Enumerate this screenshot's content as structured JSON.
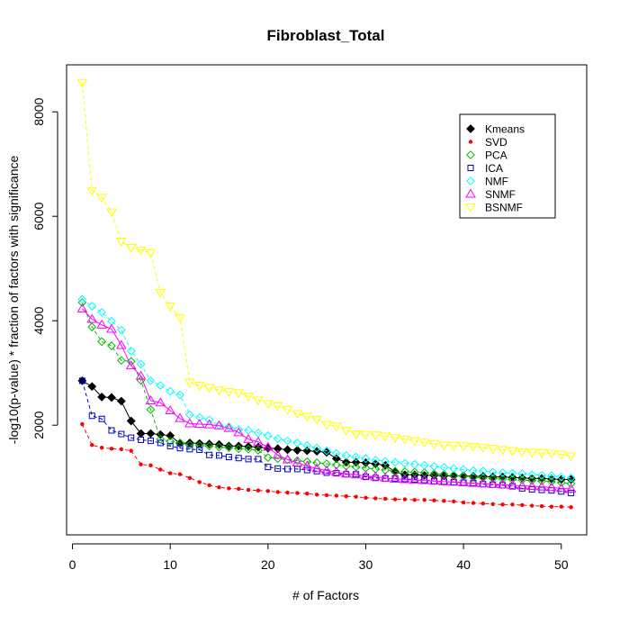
{
  "chart_data": {
    "type": "line",
    "title": "Fibroblast_Total",
    "xlabel": "# of Factors",
    "ylabel": "-log10(p-value) * fraction of factors with significance",
    "xlim": [
      -0.6,
      52.6
    ],
    "ylim": [
      -100,
      8900
    ],
    "xticks": [
      0,
      10,
      20,
      30,
      40,
      50
    ],
    "yticks": [
      2000,
      4000,
      6000,
      8000
    ],
    "grid": false,
    "legend_position": "top-right",
    "x": [
      1,
      2,
      3,
      4,
      5,
      6,
      7,
      8,
      9,
      10,
      11,
      12,
      13,
      14,
      15,
      16,
      17,
      18,
      19,
      20,
      21,
      22,
      23,
      24,
      25,
      26,
      27,
      28,
      29,
      30,
      31,
      32,
      33,
      34,
      35,
      36,
      37,
      38,
      39,
      40,
      41,
      42,
      43,
      44,
      45,
      46,
      47,
      48,
      49,
      50,
      51
    ],
    "series": [
      {
        "name": "Kmeans",
        "color": "#000000",
        "marker": "filled-diamond",
        "values": [
          2850,
          2740,
          2540,
          2530,
          2460,
          2080,
          1840,
          1840,
          1820,
          1800,
          1650,
          1660,
          1650,
          1640,
          1630,
          1600,
          1600,
          1590,
          1580,
          1560,
          1550,
          1530,
          1520,
          1510,
          1500,
          1480,
          1360,
          1290,
          1290,
          1280,
          1260,
          1230,
          1110,
          1050,
          1050,
          1040,
          1040,
          1030,
          1030,
          1030,
          1020,
          1020,
          1010,
          1010,
          1000,
          990,
          980,
          980,
          970,
          960,
          960
        ]
      },
      {
        "name": "SVD",
        "color": "#ff0000",
        "marker": "dot",
        "values": [
          2020,
          1620,
          1570,
          1550,
          1540,
          1510,
          1250,
          1230,
          1150,
          1080,
          1060,
          990,
          910,
          850,
          810,
          790,
          780,
          760,
          750,
          740,
          720,
          710,
          700,
          690,
          670,
          660,
          650,
          640,
          630,
          610,
          600,
          590,
          580,
          580,
          570,
          570,
          560,
          550,
          540,
          520,
          510,
          500,
          490,
          480,
          480,
          470,
          460,
          450,
          440,
          440,
          430
        ]
      },
      {
        "name": "PCA",
        "color": "#00bb00",
        "marker": "open-diamond",
        "values": [
          4350,
          3880,
          3600,
          3520,
          3240,
          3220,
          2860,
          2300,
          1730,
          1690,
          1660,
          1620,
          1610,
          1600,
          1580,
          1570,
          1550,
          1540,
          1520,
          1380,
          1360,
          1340,
          1320,
          1300,
          1280,
          1260,
          1240,
          1220,
          1200,
          1180,
          1160,
          1140,
          1120,
          1110,
          1100,
          1090,
          1070,
          1060,
          1040,
          1020,
          1000,
          990,
          980,
          970,
          960,
          950,
          940,
          930,
          920,
          900,
          880
        ]
      },
      {
        "name": "ICA",
        "color": "#0000cc",
        "marker": "open-square",
        "values": [
          2850,
          2180,
          2120,
          1900,
          1830,
          1760,
          1720,
          1700,
          1660,
          1600,
          1560,
          1540,
          1530,
          1430,
          1420,
          1390,
          1370,
          1350,
          1350,
          1200,
          1170,
          1160,
          1160,
          1140,
          1120,
          1090,
          1080,
          1060,
          1060,
          1010,
          990,
          980,
          980,
          970,
          960,
          950,
          930,
          920,
          910,
          900,
          890,
          870,
          860,
          850,
          830,
          790,
          770,
          760,
          750,
          730,
          700
        ]
      },
      {
        "name": "NMF",
        "color": "#00ffff",
        "marker": "open-diamond",
        "values": [
          4410,
          4280,
          4160,
          3990,
          3820,
          3420,
          3170,
          2850,
          2760,
          2650,
          2580,
          2200,
          2150,
          2100,
          2000,
          1970,
          1920,
          1900,
          1850,
          1800,
          1740,
          1700,
          1660,
          1610,
          1560,
          1510,
          1460,
          1420,
          1390,
          1360,
          1330,
          1310,
          1290,
          1270,
          1250,
          1230,
          1210,
          1190,
          1170,
          1150,
          1130,
          1120,
          1100,
          1090,
          1080,
          1070,
          1050,
          1040,
          1030,
          1010,
          990
        ]
      },
      {
        "name": "SNMF",
        "color": "#ff00ff",
        "marker": "open-triangle-up",
        "values": [
          4230,
          4030,
          3920,
          3840,
          3530,
          3140,
          2940,
          2470,
          2430,
          2280,
          2130,
          2030,
          2020,
          2010,
          1990,
          1940,
          1860,
          1730,
          1680,
          1580,
          1430,
          1340,
          1280,
          1220,
          1170,
          1130,
          1100,
          1070,
          1050,
          1030,
          1010,
          990,
          970,
          960,
          950,
          940,
          930,
          920,
          910,
          900,
          890,
          880,
          870,
          860,
          850,
          840,
          830,
          820,
          810,
          790,
          780
        ]
      },
      {
        "name": "BSNMF",
        "color": "#ffff00",
        "marker": "open-triangle-down",
        "values": [
          8560,
          6490,
          6360,
          6080,
          5520,
          5400,
          5350,
          5300,
          4540,
          4280,
          4060,
          2820,
          2760,
          2720,
          2670,
          2640,
          2620,
          2550,
          2480,
          2410,
          2370,
          2300,
          2220,
          2170,
          2110,
          2010,
          1980,
          1900,
          1830,
          1820,
          1810,
          1790,
          1760,
          1730,
          1700,
          1670,
          1640,
          1620,
          1610,
          1600,
          1590,
          1570,
          1550,
          1530,
          1510,
          1490,
          1480,
          1470,
          1460,
          1440,
          1410
        ]
      }
    ]
  }
}
